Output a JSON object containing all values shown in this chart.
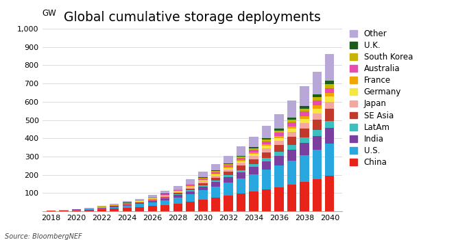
{
  "title": "Global cumulative storage deployments",
  "ylabel": "GW",
  "source": "Source: BloombergNEF",
  "years": [
    2018,
    2019,
    2020,
    2021,
    2022,
    2023,
    2024,
    2025,
    2026,
    2027,
    2028,
    2029,
    2030,
    2031,
    2032,
    2033,
    2034,
    2035,
    2036,
    2037,
    2038,
    2039,
    2040
  ],
  "series": {
    "China": [
      2,
      3,
      5,
      7,
      10,
      14,
      18,
      23,
      28,
      34,
      42,
      51,
      62,
      73,
      85,
      97,
      110,
      120,
      130,
      145,
      160,
      175,
      195
    ],
    "U.S.": [
      1,
      2,
      3,
      4,
      6,
      9,
      12,
      16,
      21,
      27,
      34,
      42,
      52,
      62,
      72,
      82,
      93,
      107,
      120,
      133,
      147,
      161,
      177
    ],
    "India": [
      0,
      0,
      1,
      1,
      2,
      3,
      4,
      5,
      7,
      9,
      12,
      16,
      20,
      24,
      29,
      34,
      39,
      46,
      53,
      60,
      68,
      76,
      86
    ],
    "LatAm": [
      0,
      0,
      0,
      1,
      1,
      1,
      2,
      2,
      3,
      4,
      5,
      6,
      7,
      9,
      11,
      13,
      16,
      18,
      21,
      25,
      28,
      32,
      36
    ],
    "SE Asia": [
      0,
      0,
      1,
      1,
      1,
      2,
      3,
      4,
      5,
      6,
      8,
      10,
      13,
      16,
      19,
      23,
      27,
      32,
      38,
      44,
      51,
      58,
      66
    ],
    "Japan": [
      0,
      0,
      0,
      1,
      1,
      1,
      2,
      2,
      3,
      4,
      5,
      7,
      9,
      11,
      13,
      15,
      18,
      21,
      24,
      27,
      31,
      35,
      40
    ],
    "Germany": [
      0,
      0,
      0,
      0,
      1,
      1,
      1,
      2,
      2,
      3,
      4,
      4,
      5,
      6,
      8,
      10,
      12,
      14,
      16,
      19,
      22,
      25,
      28
    ],
    "France": [
      0,
      0,
      0,
      0,
      0,
      1,
      1,
      1,
      1,
      2,
      2,
      3,
      4,
      4,
      5,
      6,
      8,
      9,
      11,
      13,
      15,
      17,
      19
    ],
    "Australia": [
      0,
      0,
      0,
      1,
      1,
      1,
      2,
      2,
      3,
      3,
      4,
      5,
      6,
      8,
      9,
      11,
      13,
      15,
      17,
      20,
      23,
      26,
      29
    ],
    "South Korea": [
      0,
      0,
      0,
      0,
      1,
      1,
      1,
      1,
      2,
      2,
      3,
      4,
      5,
      6,
      7,
      8,
      9,
      11,
      13,
      15,
      17,
      19,
      22
    ],
    "U.K.": [
      0,
      0,
      0,
      0,
      0,
      1,
      1,
      1,
      1,
      2,
      2,
      3,
      4,
      5,
      5,
      6,
      7,
      9,
      10,
      12,
      14,
      16,
      18
    ],
    "Other": [
      0,
      1,
      2,
      3,
      4,
      5,
      7,
      9,
      12,
      15,
      19,
      24,
      29,
      35,
      42,
      49,
      57,
      67,
      78,
      93,
      108,
      125,
      147
    ]
  },
  "colors": {
    "China": "#e8231a",
    "U.S.": "#29a8e0",
    "India": "#7b3fa0",
    "LatAm": "#3cbfbf",
    "SE Asia": "#c0392b",
    "Japan": "#f4a6a0",
    "Germany": "#f5e642",
    "France": "#f0a500",
    "Australia": "#e84caf",
    "South Korea": "#c8b400",
    "U.K.": "#1a5c1a",
    "Other": "#b8a8d8"
  },
  "legend_order": [
    "Other",
    "U.K.",
    "South Korea",
    "Australia",
    "France",
    "Germany",
    "Japan",
    "SE Asia",
    "LatAm",
    "India",
    "U.S.",
    "China"
  ],
  "ylim": [
    0,
    1000
  ],
  "yticks": [
    0,
    100,
    200,
    300,
    400,
    500,
    600,
    700,
    800,
    900,
    1000
  ],
  "ytick_labels": [
    "",
    "100",
    "200",
    "300",
    "400",
    "500",
    "600",
    "700",
    "800",
    "900",
    "1,000"
  ],
  "background_color": "#ffffff",
  "title_fontsize": 13.5,
  "label_fontsize": 8.5,
  "tick_fontsize": 8,
  "source_fontsize": 7,
  "bar_width": 0.72
}
